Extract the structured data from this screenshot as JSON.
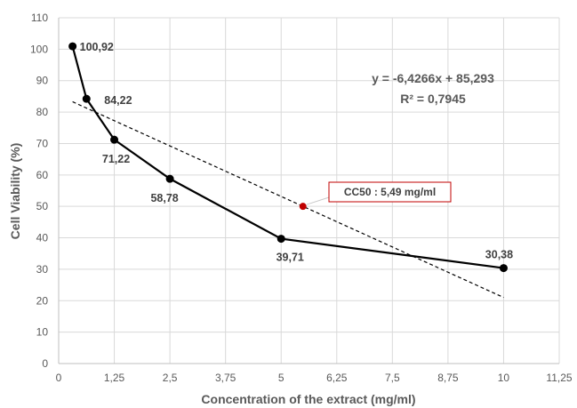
{
  "chart_data": {
    "type": "scatter",
    "xlabel": "Concentration of the extract (mg/ml)",
    "ylabel": "Cell Viability (%)",
    "xlim": [
      0,
      11.25
    ],
    "ylim": [
      0,
      110
    ],
    "x_ticks": [
      "0",
      "1,25",
      "2,5",
      "3,75",
      "5",
      "6,25",
      "7,5",
      "8,75",
      "10",
      "11,25"
    ],
    "y_ticks": [
      "0",
      "10",
      "20",
      "30",
      "40",
      "50",
      "60",
      "70",
      "80",
      "90",
      "100",
      "110"
    ],
    "grid": "vertical and horizontal major gridlines",
    "series": [
      {
        "x": [
          0.3125,
          0.625,
          1.25,
          2.5,
          5,
          10
        ],
        "y": [
          100.92,
          84.22,
          71.22,
          58.78,
          39.71,
          30.38
        ],
        "labels": [
          "100,92",
          "84,22",
          "71,22",
          "58,78",
          "39,71",
          "30,38"
        ],
        "color": "#000000"
      }
    ],
    "trendline": {
      "slope": -6.4266,
      "intercept": 85.293,
      "x_range": [
        0.3125,
        10
      ],
      "style": "dashed",
      "color": "#000000",
      "equation": "y = -6,4266x + 85,293",
      "r_squared": "R² = 0,7945"
    },
    "marker": {
      "x": 5.49,
      "y": 50,
      "color": "#c00000",
      "label": "CC50 : 5,49 mg/ml",
      "label_border_color": "#c00000"
    }
  }
}
